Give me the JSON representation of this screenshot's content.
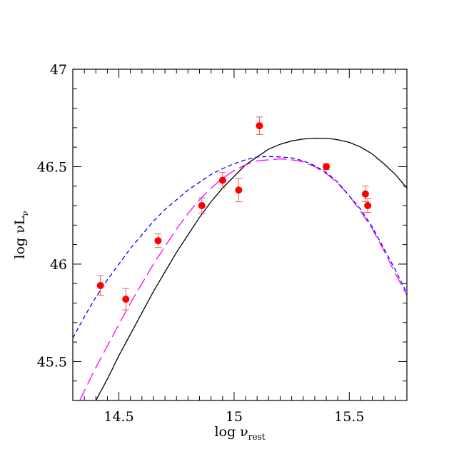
{
  "chart_data": {
    "type": "scatter",
    "title": "",
    "xlabel": {
      "main": "log  ν",
      "sub": "rest"
    },
    "ylabel": {
      "main": "log  νL",
      "sub": "ν"
    },
    "xlim": [
      14.3,
      15.75
    ],
    "ylim": [
      45.3,
      47.0
    ],
    "x_ticks": [
      14.5,
      15,
      15.5
    ],
    "x_tick_labels": [
      "14.5",
      "15",
      "15.5"
    ],
    "y_ticks": [
      45.5,
      46,
      46.5,
      47
    ],
    "y_tick_labels": [
      "45.5",
      "46",
      "46.5",
      "47"
    ],
    "grid": false,
    "legend": "none",
    "colors": {
      "points": "#ff0000",
      "error_bars": "#e86060",
      "solid_curve": "#000000",
      "long_dash_curve": "#ff00ff",
      "short_dash_curve": "#0000ff"
    },
    "points": [
      {
        "x": 14.42,
        "y": 45.89,
        "err": 0.05
      },
      {
        "x": 14.53,
        "y": 45.82,
        "err": 0.055
      },
      {
        "x": 14.67,
        "y": 46.12,
        "err": 0.035
      },
      {
        "x": 14.86,
        "y": 46.3,
        "err": 0.04
      },
      {
        "x": 14.95,
        "y": 46.43,
        "err": 0.04
      },
      {
        "x": 15.02,
        "y": 46.38,
        "err": 0.06
      },
      {
        "x": 15.11,
        "y": 46.71,
        "err": 0.045
      },
      {
        "x": 15.4,
        "y": 46.5,
        "err": 0.015
      },
      {
        "x": 15.57,
        "y": 46.36,
        "err": 0.04
      },
      {
        "x": 15.58,
        "y": 46.3,
        "err": 0.035
      }
    ],
    "series": [
      {
        "style": "solid",
        "x": [
          14.4,
          14.45,
          14.5,
          14.55,
          14.6,
          14.65,
          14.7,
          14.75,
          14.8,
          14.85,
          14.9,
          14.95,
          15.0,
          15.05,
          15.1,
          15.15,
          15.2,
          15.25,
          15.3,
          15.35,
          15.4,
          15.43,
          15.45,
          15.5,
          15.55,
          15.6,
          15.65,
          15.7,
          15.75
        ],
        "y": [
          45.3,
          45.41,
          45.53,
          45.64,
          45.75,
          45.86,
          45.96,
          46.06,
          46.15,
          46.24,
          46.32,
          46.39,
          46.45,
          46.51,
          46.55,
          46.59,
          46.615,
          46.632,
          46.642,
          46.646,
          46.645,
          46.642,
          46.638,
          46.625,
          46.6,
          46.565,
          46.515,
          46.46,
          46.39
        ]
      },
      {
        "style": "long-dash",
        "x": [
          14.33,
          14.4,
          14.45,
          14.5,
          14.55,
          14.6,
          14.65,
          14.7,
          14.75,
          14.8,
          14.85,
          14.9,
          14.95,
          15.0,
          15.05,
          15.1,
          15.15,
          15.2,
          15.25,
          15.3,
          15.35,
          15.4,
          15.45,
          15.5,
          15.55,
          15.6,
          15.65,
          15.7,
          15.75
        ],
        "y": [
          45.3,
          45.47,
          45.58,
          45.69,
          45.8,
          45.9,
          46.0,
          46.09,
          46.18,
          46.26,
          46.33,
          46.39,
          46.44,
          46.48,
          46.51,
          46.53,
          46.535,
          46.54,
          46.535,
          46.525,
          46.5,
          46.465,
          46.415,
          46.35,
          46.27,
          46.18,
          46.07,
          45.95,
          45.84
        ]
      },
      {
        "style": "short-dash",
        "x": [
          14.3,
          14.35,
          14.4,
          14.45,
          14.5,
          14.55,
          14.6,
          14.65,
          14.7,
          14.75,
          14.8,
          14.85,
          14.9,
          14.95,
          15.0,
          15.05,
          15.1,
          15.15,
          15.2,
          15.25,
          15.3,
          15.35,
          15.4,
          15.45,
          15.5,
          15.55,
          15.6,
          15.65,
          15.7,
          15.75
        ],
        "y": [
          45.62,
          45.73,
          45.83,
          45.92,
          46.0,
          46.08,
          46.15,
          46.22,
          46.28,
          46.33,
          46.38,
          46.42,
          46.46,
          46.49,
          46.515,
          46.535,
          46.55,
          46.552,
          46.55,
          46.545,
          46.53,
          46.505,
          46.47,
          46.42,
          46.35,
          46.28,
          46.19,
          46.08,
          45.97,
          45.85
        ]
      }
    ]
  }
}
